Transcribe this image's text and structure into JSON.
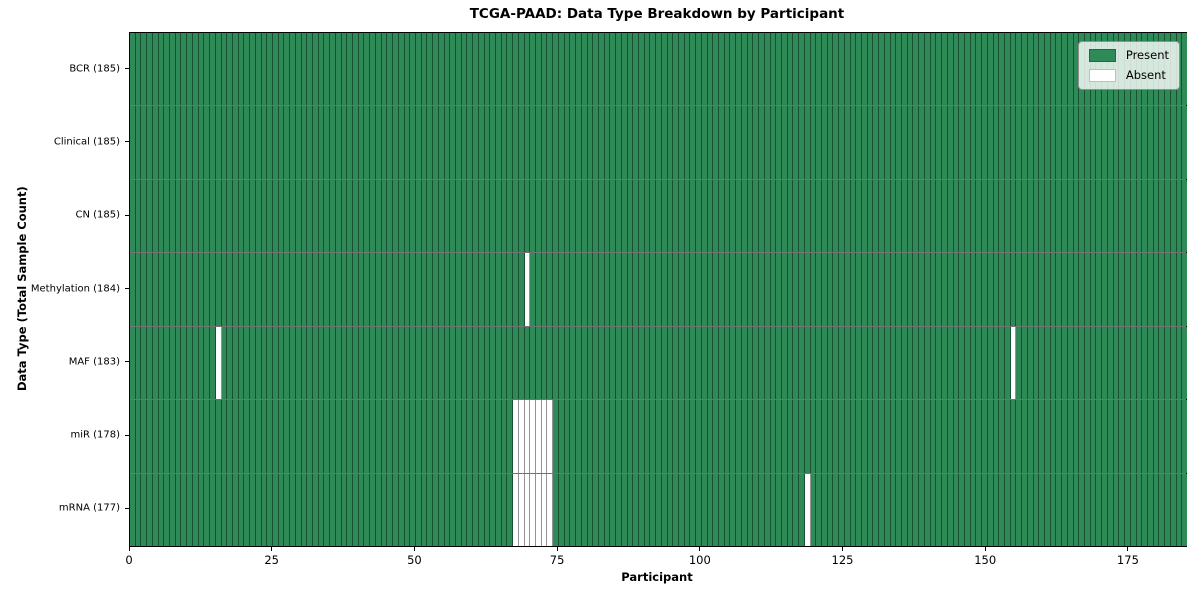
{
  "chart_data": {
    "type": "heatmap",
    "title": "TCGA-PAAD: Data Type Breakdown by Participant",
    "xlabel": "Participant",
    "ylabel": "Data Type (Total Sample Count)",
    "n_participants": 185,
    "x_ticks": [
      0,
      25,
      50,
      75,
      100,
      125,
      150,
      175
    ],
    "xlim": [
      0,
      185
    ],
    "grid": false,
    "legend_position": "upper right",
    "legend": [
      {
        "label": "Present",
        "color": "#2e8b57"
      },
      {
        "label": "Absent",
        "color": "#ffffff"
      }
    ],
    "colors": {
      "present": "#2e8b57",
      "absent": "#ffffff"
    },
    "rows": [
      {
        "label": "BCR (185)",
        "data_type": "BCR",
        "present_count": 185,
        "absent_participants": []
      },
      {
        "label": "Clinical (185)",
        "data_type": "Clinical",
        "present_count": 185,
        "absent_participants": []
      },
      {
        "label": "CN (185)",
        "data_type": "CN",
        "present_count": 185,
        "absent_participants": []
      },
      {
        "label": "Methylation (184)",
        "data_type": "Methylation",
        "present_count": 184,
        "absent_participants": [
          69
        ]
      },
      {
        "label": "MAF (183)",
        "data_type": "MAF",
        "present_count": 183,
        "absent_participants": [
          15,
          154
        ]
      },
      {
        "label": "miR (178)",
        "data_type": "miR",
        "present_count": 178,
        "absent_participants": [
          67,
          68,
          69,
          70,
          71,
          72,
          73
        ]
      },
      {
        "label": "mRNA (177)",
        "data_type": "mRNA",
        "present_count": 177,
        "absent_participants": [
          67,
          68,
          69,
          70,
          71,
          72,
          73,
          118
        ]
      }
    ]
  }
}
